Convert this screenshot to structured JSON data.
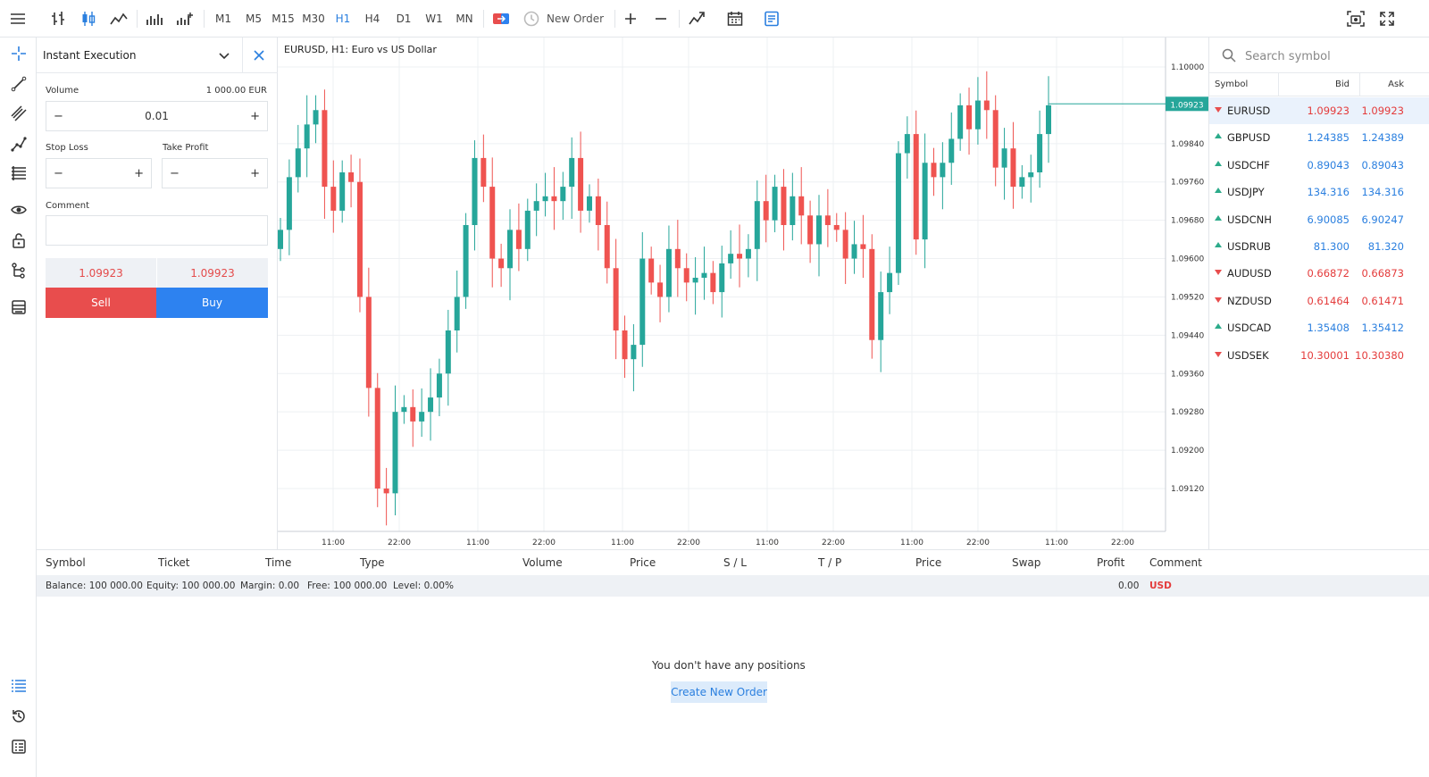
{
  "toolbar": {
    "timeframes": [
      "M1",
      "M5",
      "M15",
      "M30",
      "H1",
      "H4",
      "D1",
      "W1",
      "MN"
    ],
    "active_timeframe": "H1",
    "new_order_label": "New Order"
  },
  "order_panel": {
    "execution_type": "Instant Execution",
    "volume_label": "Volume",
    "volume_value": "0.01",
    "volume_amount": "1 000.00 EUR",
    "stop_loss_label": "Stop Loss",
    "take_profit_label": "Take Profit",
    "comment_label": "Comment",
    "bid_price": "1.09923",
    "ask_price": "1.09923",
    "sell_label": "Sell",
    "buy_label": "Buy"
  },
  "chart": {
    "title": "EURUSD, H1: Euro vs US Dollar",
    "price_labels": [
      "1.10000",
      "1.09840",
      "1.09760",
      "1.09680",
      "1.09600",
      "1.09520",
      "1.09440",
      "1.09360",
      "1.09280",
      "1.09200",
      "1.09120"
    ],
    "current_price": "1.09923",
    "time_labels": [
      "11:00",
      "22:00",
      "11:00",
      "22:00",
      "11:00",
      "22:00",
      "11:00",
      "22:00",
      "11:00",
      "22:00",
      "11:00",
      "22:00"
    ],
    "colors": {
      "bull": "#26a69a",
      "bear": "#ef5350",
      "grid": "#eef0f3"
    }
  },
  "chart_data": {
    "type": "candlestick",
    "symbol": "EURUSD",
    "timeframe": "H1",
    "ylim": [
      1.0906,
      1.1005
    ],
    "current_price": 1.09923,
    "candles_close": [
      1.0966,
      1.0977,
      1.0983,
      1.0988,
      1.0991,
      1.0975,
      1.097,
      1.0978,
      1.0976,
      1.0952,
      1.0933,
      1.0912,
      1.0911,
      1.0928,
      1.0929,
      1.0926,
      1.0928,
      1.0931,
      1.0936,
      1.0945,
      1.0952,
      1.0967,
      1.0981,
      1.0975,
      1.096,
      1.0958,
      1.0966,
      1.0962,
      1.097,
      1.0972,
      1.0973,
      1.0972,
      1.0975,
      1.0981,
      1.097,
      1.0973,
      1.0967,
      1.0958,
      1.0945,
      1.0939,
      1.0942,
      1.096,
      1.0955,
      1.0952,
      1.0962,
      1.0958,
      1.0955,
      1.0956,
      1.0957,
      1.0953,
      1.0959,
      1.0961,
      1.096,
      1.0962,
      1.0972,
      1.0968,
      1.0975,
      1.0967,
      1.0973,
      1.0969,
      1.0963,
      1.0969,
      1.0967,
      1.0966,
      1.096,
      1.0963,
      1.0962,
      1.0943,
      1.0953,
      1.0957,
      1.0982,
      1.0986,
      1.0964,
      1.098,
      1.0977,
      1.098,
      1.0985,
      1.0992,
      1.0987,
      1.0993,
      1.0991,
      1.0979,
      1.0983,
      1.0975,
      1.0977,
      1.0978,
      1.0986,
      1.0992
    ]
  },
  "watch": {
    "search_placeholder": "Search symbol",
    "col_symbol": "Symbol",
    "col_bid": "Bid",
    "col_ask": "Ask",
    "rows": [
      {
        "symbol": "EURUSD",
        "bid": "1.09923",
        "ask": "1.09923",
        "dir": "down"
      },
      {
        "symbol": "GBPUSD",
        "bid": "1.24385",
        "ask": "1.24389",
        "dir": "up"
      },
      {
        "symbol": "USDCHF",
        "bid": "0.89043",
        "ask": "0.89043",
        "dir": "up"
      },
      {
        "symbol": "USDJPY",
        "bid": "134.316",
        "ask": "134.316",
        "dir": "up"
      },
      {
        "symbol": "USDCNH",
        "bid": "6.90085",
        "ask": "6.90247",
        "dir": "up"
      },
      {
        "symbol": "USDRUB",
        "bid": "81.300",
        "ask": "81.320",
        "dir": "up"
      },
      {
        "symbol": "AUDUSD",
        "bid": "0.66872",
        "ask": "0.66873",
        "dir": "down"
      },
      {
        "symbol": "NZDUSD",
        "bid": "0.61464",
        "ask": "0.61471",
        "dir": "down"
      },
      {
        "symbol": "USDCAD",
        "bid": "1.35408",
        "ask": "1.35412",
        "dir": "up"
      },
      {
        "symbol": "USDSEK",
        "bid": "10.30001",
        "ask": "10.30380",
        "dir": "down"
      }
    ]
  },
  "positions": {
    "columns": {
      "symbol": "Symbol",
      "ticket": "Ticket",
      "time": "Time",
      "type": "Type",
      "volume": "Volume",
      "price": "Price",
      "sl": "S / L",
      "tp": "T / P",
      "price2": "Price",
      "swap": "Swap",
      "profit": "Profit",
      "comment": "Comment"
    },
    "balance": "Balance: 100 000.00",
    "equity": "Equity: 100 000.00",
    "margin": "Margin: 0.00",
    "free": "Free: 100 000.00",
    "level": "Level: 0.00%",
    "profit_total": "0.00",
    "currency": "USD",
    "empty_message": "You don't have any positions",
    "create_order_label": "Create New Order"
  }
}
